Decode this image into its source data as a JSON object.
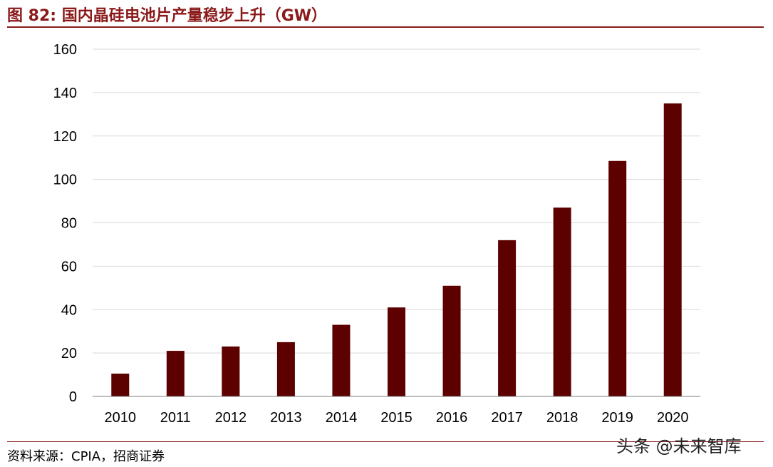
{
  "header": {
    "title": "图 82:  国内晶硅电池片产量稳步上升（GW）"
  },
  "footer": {
    "source": "资料来源：CPIA，招商证券",
    "watermark": "头条 @未来智库"
  },
  "colors": {
    "bar": "#5c0000",
    "grid": "#d9d9d9",
    "accent": "#8b1a1a"
  },
  "chart_data": {
    "type": "bar",
    "title": "国内晶硅电池片产量稳步上升（GW）",
    "categories": [
      "2010",
      "2011",
      "2012",
      "2013",
      "2014",
      "2015",
      "2016",
      "2017",
      "2018",
      "2019",
      "2020"
    ],
    "values": [
      10.5,
      21,
      23,
      25,
      33,
      41,
      51,
      72,
      87,
      108.5,
      135
    ],
    "ylim": [
      0,
      160
    ],
    "yticks": [
      0,
      20,
      40,
      60,
      80,
      100,
      120,
      140,
      160
    ],
    "grid": true,
    "legend": "none"
  }
}
